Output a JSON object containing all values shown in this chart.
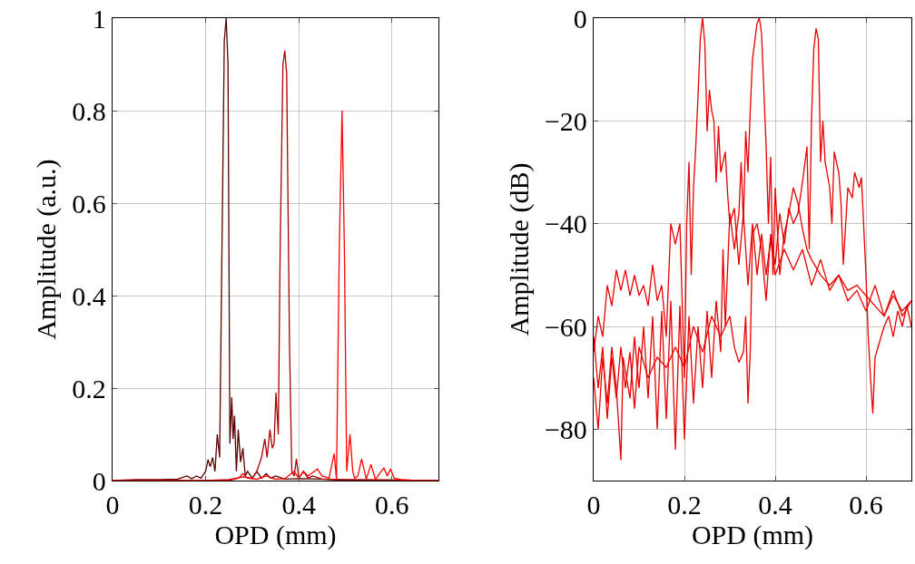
{
  "chart_data": [
    {
      "type": "line",
      "xlabel": "OPD (mm)",
      "ylabel": "Amplitude (a.u.)",
      "xlim": [
        0,
        0.7
      ],
      "ylim": [
        0,
        1
      ],
      "xticks": [
        0,
        0.2,
        0.4,
        0.6
      ],
      "yticks": [
        0,
        0.2,
        0.4,
        0.6,
        0.8,
        1
      ],
      "grid": true,
      "series": [
        {
          "color": "#5a0000",
          "x": [
            0,
            0.05,
            0.1,
            0.14,
            0.16,
            0.17,
            0.18,
            0.19,
            0.2,
            0.205,
            0.21,
            0.215,
            0.22,
            0.225,
            0.23,
            0.235,
            0.24,
            0.244,
            0.248,
            0.252,
            0.256,
            0.259,
            0.262,
            0.266,
            0.27,
            0.275,
            0.28,
            0.285,
            0.29,
            0.3,
            0.31,
            0.32,
            0.33,
            0.34,
            0.35,
            0.37,
            0.4,
            0.45,
            0.5,
            0.6,
            0.7
          ],
          "values": [
            0,
            0.002,
            0.002,
            0.003,
            0.01,
            0.004,
            0.01,
            0.005,
            0.02,
            0.045,
            0.03,
            0.05,
            0.02,
            0.1,
            0.05,
            0.5,
            0.95,
            1.0,
            0.9,
            0.08,
            0.18,
            0.09,
            0.14,
            0.02,
            0.11,
            0.04,
            0.07,
            0.01,
            0.02,
            0.005,
            0.02,
            0.005,
            0.015,
            0.005,
            0.01,
            0.003,
            0.004,
            0.003,
            0.001,
            0.001,
            0
          ]
        },
        {
          "color": "#aa0000",
          "x": [
            0,
            0.2,
            0.25,
            0.28,
            0.3,
            0.31,
            0.32,
            0.327,
            0.332,
            0.338,
            0.343,
            0.347,
            0.351,
            0.356,
            0.36,
            0.366,
            0.37,
            0.374,
            0.38,
            0.385,
            0.39,
            0.395,
            0.4,
            0.41,
            0.42,
            0.43,
            0.45,
            0.5,
            0.6,
            0.7
          ],
          "values": [
            0,
            0,
            0.002,
            0.008,
            0.005,
            0.02,
            0.05,
            0.09,
            0.05,
            0.11,
            0.07,
            0.08,
            0.19,
            0.1,
            0.5,
            0.9,
            0.93,
            0.88,
            0.3,
            0.02,
            0.01,
            0.047,
            0.005,
            0.02,
            0.005,
            0.01,
            0.003,
            0.002,
            0.001,
            0
          ]
        },
        {
          "color": "#ff0000",
          "x": [
            0,
            0.25,
            0.27,
            0.28,
            0.29,
            0.31,
            0.33,
            0.35,
            0.37,
            0.39,
            0.4,
            0.41,
            0.42,
            0.44,
            0.45,
            0.465,
            0.476,
            0.481,
            0.487,
            0.493,
            0.498,
            0.503,
            0.51,
            0.516,
            0.52,
            0.527,
            0.535,
            0.545,
            0.555,
            0.565,
            0.573,
            0.583,
            0.59,
            0.597,
            0.605,
            0.62,
            0.65,
            0.7
          ],
          "values": [
            0,
            0,
            0.005,
            0.015,
            0.005,
            0.003,
            0.01,
            0.003,
            0.004,
            0.02,
            0.005,
            0.02,
            0.01,
            0.025,
            0.01,
            0.005,
            0.058,
            0.003,
            0.5,
            0.8,
            0.5,
            0.02,
            0.1,
            0.02,
            0.005,
            0.01,
            0.047,
            0.003,
            0.035,
            0.002,
            0.015,
            0.027,
            0.01,
            0.025,
            0.005,
            0.002,
            0,
            0
          ]
        }
      ]
    },
    {
      "type": "line",
      "xlabel": "OPD (mm)",
      "ylabel": "Amplitude (dB)",
      "xlim": [
        0,
        0.7
      ],
      "ylim": [
        -90,
        0
      ],
      "xticks": [
        0,
        0.2,
        0.4,
        0.6
      ],
      "yticks": [
        {
          "value": -80,
          "label": "−80"
        },
        {
          "value": -60,
          "label": "−60"
        },
        {
          "value": -40,
          "label": "−40"
        },
        {
          "value": -20,
          "label": "−20"
        },
        0
      ],
      "grid": true,
      "series": [
        {
          "color": "#e60000",
          "x": [
            0,
            0.01,
            0.02,
            0.03,
            0.04,
            0.05,
            0.06,
            0.07,
            0.08,
            0.09,
            0.1,
            0.11,
            0.12,
            0.13,
            0.14,
            0.15,
            0.16,
            0.17,
            0.18,
            0.19,
            0.2,
            0.205,
            0.21,
            0.215,
            0.22,
            0.225,
            0.23,
            0.235,
            0.24,
            0.245,
            0.25,
            0.255,
            0.26,
            0.265,
            0.27,
            0.275,
            0.28,
            0.29,
            0.295,
            0.3,
            0.31,
            0.32,
            0.33,
            0.34,
            0.35,
            0.36,
            0.37,
            0.38,
            0.39,
            0.4,
            0.42,
            0.44,
            0.46,
            0.48,
            0.5,
            0.52,
            0.54,
            0.56,
            0.58,
            0.6,
            0.62,
            0.64,
            0.66,
            0.68,
            0.7
          ],
          "values": [
            -65,
            -58,
            -62,
            -52,
            -56,
            -49,
            -53,
            -49,
            -54,
            -50,
            -54,
            -52,
            -56,
            -48,
            -55,
            -52,
            -62,
            -40,
            -44,
            -40,
            -70,
            -40,
            -28,
            -50,
            -33,
            -25,
            -15,
            -4,
            0,
            -5,
            -22,
            -14,
            -18,
            -20,
            -32,
            -21,
            -30,
            -26,
            -34,
            -40,
            -37,
            -48,
            -38,
            -52,
            -40,
            -50,
            -42,
            -50,
            -43,
            -50,
            -45,
            -49,
            -45,
            -52,
            -47,
            -53,
            -50,
            -55,
            -53,
            -57,
            -52,
            -58,
            -53,
            -58,
            -55
          ]
        },
        {
          "color": "#e60000",
          "x": [
            0,
            0.01,
            0.02,
            0.03,
            0.04,
            0.05,
            0.06,
            0.065,
            0.08,
            0.09,
            0.1,
            0.11,
            0.12,
            0.13,
            0.14,
            0.15,
            0.16,
            0.17,
            0.18,
            0.19,
            0.2,
            0.21,
            0.22,
            0.23,
            0.24,
            0.25,
            0.26,
            0.27,
            0.28,
            0.285,
            0.29,
            0.3,
            0.31,
            0.32,
            0.325,
            0.33,
            0.335,
            0.34,
            0.345,
            0.35,
            0.36,
            0.365,
            0.37,
            0.38,
            0.385,
            0.39,
            0.395,
            0.4,
            0.41,
            0.42,
            0.43,
            0.44,
            0.45,
            0.46,
            0.47,
            0.48,
            0.5,
            0.52,
            0.54,
            0.56,
            0.58,
            0.6,
            0.62,
            0.64,
            0.66,
            0.68,
            0.7
          ],
          "values": [
            -70,
            -80,
            -66,
            -75,
            -64,
            -72,
            -86,
            -66,
            -74,
            -62,
            -72,
            -60,
            -74,
            -58,
            -80,
            -57,
            -78,
            -55,
            -84,
            -56,
            -82,
            -58,
            -75,
            -60,
            -72,
            -57,
            -70,
            -55,
            -65,
            -45,
            -60,
            -38,
            -45,
            -38,
            -28,
            -40,
            -22,
            -30,
            -18,
            -8,
            -1,
            0,
            -3,
            -25,
            -40,
            -27,
            -50,
            -33,
            -50,
            -42,
            -38,
            -33,
            -36,
            -41,
            -45,
            -47,
            -50,
            -52,
            -50,
            -53,
            -52,
            -54,
            -56,
            -58,
            -54,
            -57,
            -55
          ]
        },
        {
          "color": "#e60000",
          "x": [
            0,
            0.01,
            0.02,
            0.03,
            0.04,
            0.05,
            0.06,
            0.07,
            0.08,
            0.09,
            0.1,
            0.12,
            0.14,
            0.16,
            0.18,
            0.2,
            0.22,
            0.24,
            0.26,
            0.28,
            0.3,
            0.31,
            0.32,
            0.33,
            0.335,
            0.34,
            0.345,
            0.35,
            0.36,
            0.37,
            0.38,
            0.39,
            0.4,
            0.41,
            0.42,
            0.43,
            0.44,
            0.45,
            0.46,
            0.47,
            0.475,
            0.48,
            0.485,
            0.49,
            0.495,
            0.5,
            0.505,
            0.51,
            0.52,
            0.525,
            0.53,
            0.54,
            0.545,
            0.55,
            0.56,
            0.57,
            0.575,
            0.585,
            0.59,
            0.6,
            0.605,
            0.61,
            0.615,
            0.62,
            0.63,
            0.64,
            0.65,
            0.66,
            0.67,
            0.68,
            0.69,
            0.7
          ],
          "values": [
            -62,
            -72,
            -64,
            -78,
            -66,
            -74,
            -64,
            -72,
            -65,
            -76,
            -64,
            -70,
            -66,
            -68,
            -64,
            -68,
            -60,
            -65,
            -58,
            -62,
            -58,
            -64,
            -67,
            -65,
            -58,
            -75,
            -65,
            -42,
            -40,
            -45,
            -55,
            -42,
            -48,
            -38,
            -44,
            -37,
            -40,
            -38,
            -32,
            -25,
            -45,
            -20,
            -6,
            -2,
            -4,
            -28,
            -20,
            -28,
            -33,
            -40,
            -26,
            -30,
            -36,
            -48,
            -33,
            -35,
            -30,
            -33,
            -31,
            -50,
            -62,
            -70,
            -77,
            -66,
            -63,
            -60,
            -58,
            -62,
            -57,
            -60,
            -56,
            -60
          ]
        }
      ]
    }
  ]
}
